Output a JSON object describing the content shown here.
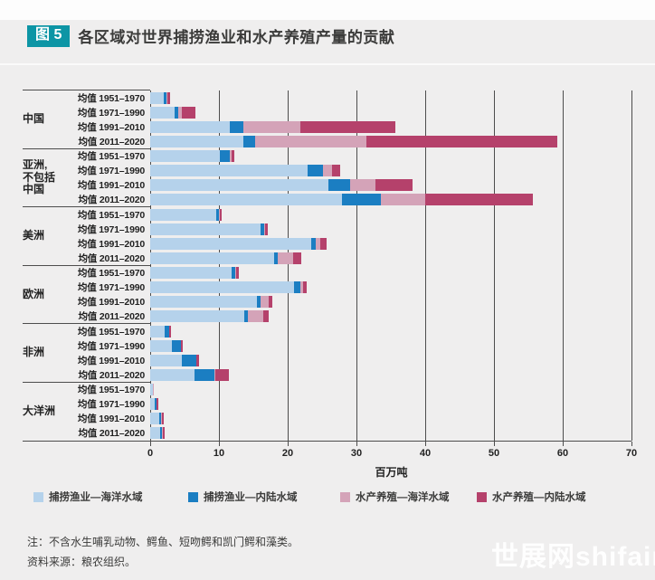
{
  "figure": {
    "tag_label": "图 5",
    "title": "各区域对世界捕捞渔业和水产养殖产量的贡献"
  },
  "chart_data": {
    "type": "bar",
    "orientation": "horizontal-stacked",
    "title": "各区域对世界捕捞渔业和水产养殖产量的贡献",
    "xlabel": "百万吨",
    "xlim": [
      0,
      70
    ],
    "xticks": [
      0,
      10,
      20,
      30,
      40,
      50,
      60,
      70
    ],
    "grid": "vertical",
    "legend_position": "bottom",
    "series": [
      {
        "name": "捕捞渔业—海洋水域",
        "color": "#b5d2eb"
      },
      {
        "name": "捕捞渔业—内陆水域",
        "color": "#1b7ec2"
      },
      {
        "name": "水产养殖—海洋水域",
        "color": "#d4a3b8"
      },
      {
        "name": "水产养殖—内陆水域",
        "color": "#b5416b"
      }
    ],
    "row_labels": [
      "均值 1951–1970",
      "均值 1971–1990",
      "均值 1991–2010",
      "均值 2011–2020"
    ],
    "groups": [
      {
        "region": "中国",
        "values": [
          [
            2.0,
            0.35,
            0.1,
            0.5
          ],
          [
            3.5,
            0.6,
            0.45,
            2.0
          ],
          [
            11.6,
            1.9,
            8.3,
            13.8
          ],
          [
            13.5,
            1.8,
            16.2,
            27.7
          ]
        ]
      },
      {
        "region": "亚洲,\n不包括\n中国",
        "values": [
          [
            10.1,
            1.5,
            0.3,
            0.3
          ],
          [
            22.9,
            2.2,
            1.3,
            1.2
          ],
          [
            25.9,
            3.2,
            3.6,
            5.4
          ],
          [
            27.9,
            5.6,
            6.5,
            15.7
          ]
        ]
      },
      {
        "region": "美洲",
        "values": [
          [
            9.6,
            0.45,
            0.05,
            0.35
          ],
          [
            16.1,
            0.5,
            0.1,
            0.35
          ],
          [
            23.4,
            0.65,
            0.65,
            1.0
          ],
          [
            18.0,
            0.5,
            2.3,
            1.2
          ]
        ]
      },
      {
        "region": "欧洲",
        "values": [
          [
            11.8,
            0.6,
            0.1,
            0.4
          ],
          [
            20.9,
            0.9,
            0.4,
            0.6
          ],
          [
            15.5,
            0.5,
            1.3,
            0.5
          ],
          [
            13.7,
            0.45,
            2.3,
            0.8
          ]
        ]
      },
      {
        "region": "非洲",
        "values": [
          [
            2.1,
            0.7,
            0,
            0.25
          ],
          [
            3.2,
            1.3,
            0,
            0.3
          ],
          [
            4.6,
            2.1,
            0.05,
            0.35
          ],
          [
            6.4,
            3.0,
            0.1,
            1.9
          ]
        ]
      },
      {
        "region": "大洋洲",
        "values": [
          [
            0.35,
            0.1,
            0.1,
            0
          ],
          [
            0.7,
            0.25,
            0,
            0.3
          ],
          [
            1.35,
            0.25,
            0.05,
            0.3
          ],
          [
            1.5,
            0.25,
            0.05,
            0.3
          ]
        ]
      }
    ]
  },
  "notes": {
    "note": "注：不含水生哺乳动物、鳄鱼、短吻鳄和凯门鳄和藻类。",
    "source": "资料来源：粮农组织。"
  },
  "watermark": "世展网shifair."
}
